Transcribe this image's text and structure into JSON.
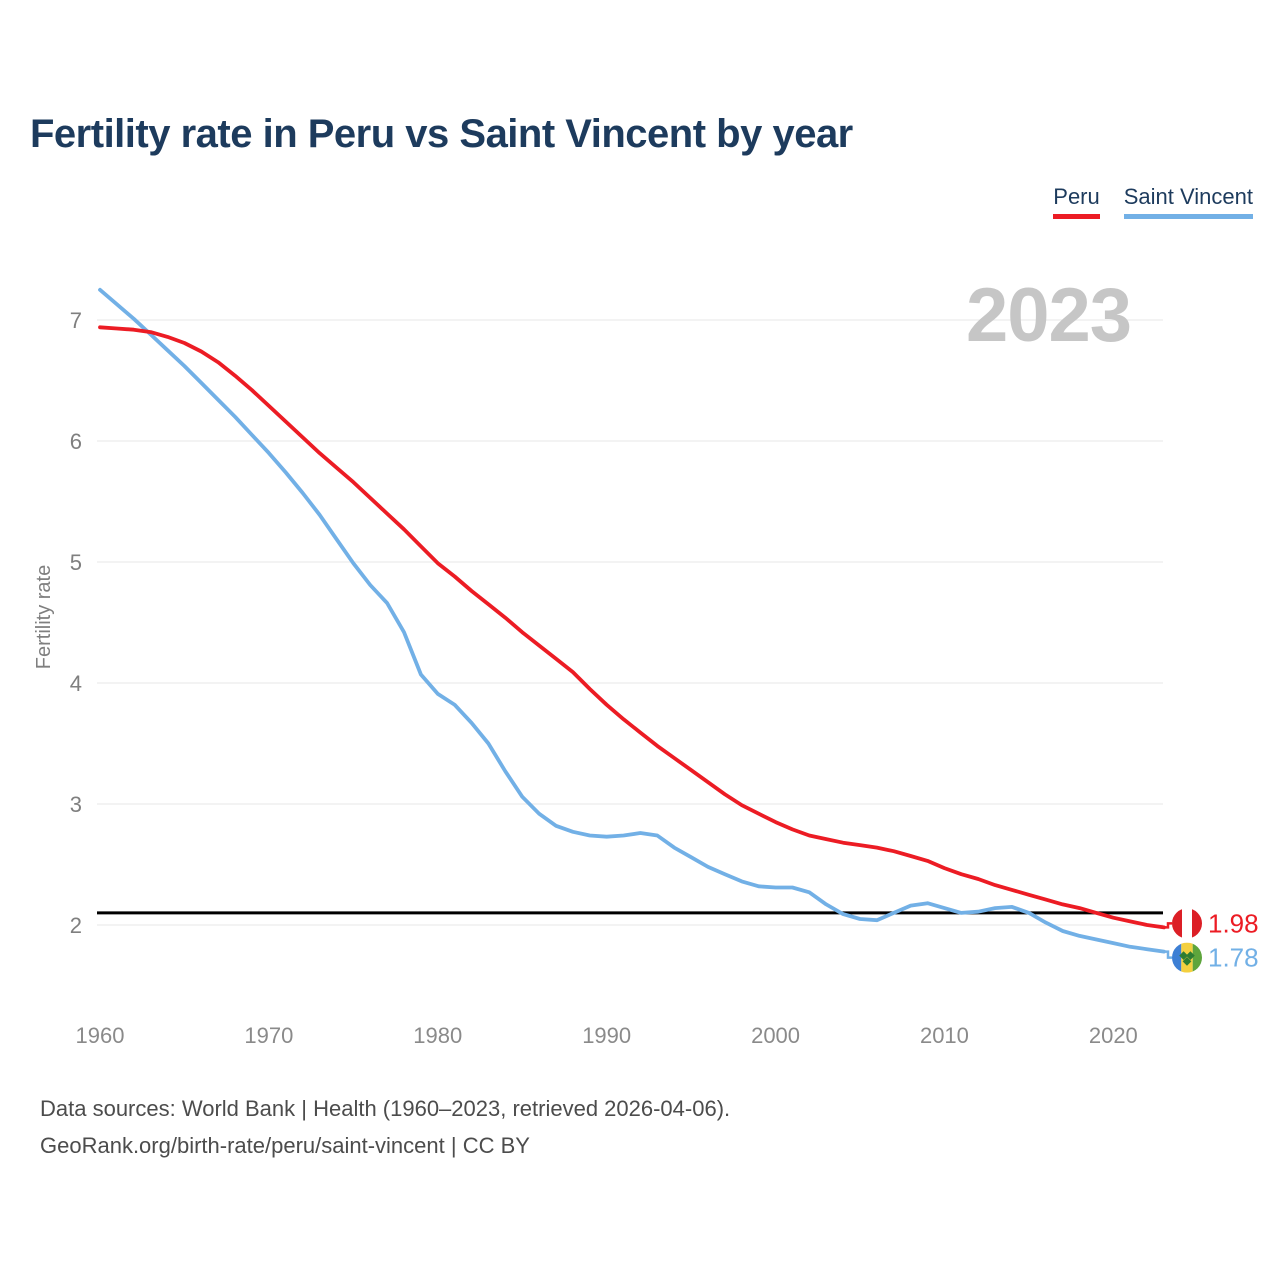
{
  "header": {
    "title": "Fertility rate in Peru vs Saint Vincent by year"
  },
  "legend": {
    "items": [
      {
        "label": "Peru",
        "color": "#ec1c24"
      },
      {
        "label": "Saint Vincent",
        "color": "#72b0e6"
      }
    ]
  },
  "watermark": "2023",
  "chart_data": {
    "type": "line",
    "title": "Fertility rate in Peru vs Saint Vincent by year",
    "xlabel": "",
    "ylabel": "Fertility rate",
    "x_ticks": [
      1960,
      1970,
      1980,
      1990,
      2000,
      2010,
      2020
    ],
    "y_ticks": [
      2,
      3,
      4,
      5,
      6,
      7
    ],
    "xlim": [
      1960,
      2023
    ],
    "ylim": [
      1.5,
      7.4
    ],
    "grid": "horizontal",
    "legend_position": "top-right",
    "reference_line": {
      "value": 2.1,
      "color": "#000000"
    },
    "x": [
      1960,
      1961,
      1962,
      1963,
      1964,
      1965,
      1966,
      1967,
      1968,
      1969,
      1970,
      1971,
      1972,
      1973,
      1974,
      1975,
      1976,
      1977,
      1978,
      1979,
      1980,
      1981,
      1982,
      1983,
      1984,
      1985,
      1986,
      1987,
      1988,
      1989,
      1990,
      1991,
      1992,
      1993,
      1994,
      1995,
      1996,
      1997,
      1998,
      1999,
      2000,
      2001,
      2002,
      2003,
      2004,
      2005,
      2006,
      2007,
      2008,
      2009,
      2010,
      2011,
      2012,
      2013,
      2014,
      2015,
      2016,
      2017,
      2018,
      2019,
      2020,
      2021,
      2022,
      2023
    ],
    "series": [
      {
        "name": "Peru",
        "color": "#ec1c24",
        "end_label": "1.98",
        "flag": "peru-flag",
        "values": [
          6.94,
          6.93,
          6.92,
          6.9,
          6.86,
          6.81,
          6.74,
          6.65,
          6.54,
          6.42,
          6.29,
          6.16,
          6.03,
          5.9,
          5.78,
          5.66,
          5.53,
          5.4,
          5.27,
          5.13,
          4.99,
          4.88,
          4.76,
          4.65,
          4.54,
          4.42,
          4.31,
          4.2,
          4.09,
          3.95,
          3.82,
          3.7,
          3.59,
          3.48,
          3.38,
          3.28,
          3.18,
          3.08,
          2.99,
          2.92,
          2.85,
          2.79,
          2.74,
          2.71,
          2.68,
          2.66,
          2.64,
          2.61,
          2.57,
          2.53,
          2.47,
          2.42,
          2.38,
          2.33,
          2.29,
          2.25,
          2.21,
          2.17,
          2.14,
          2.1,
          2.06,
          2.03,
          2.0,
          1.98
        ]
      },
      {
        "name": "Saint Vincent",
        "color": "#72b0e6",
        "end_label": "1.78",
        "flag": "saint-vincent-flag",
        "values": [
          7.25,
          7.13,
          7.01,
          6.88,
          6.75,
          6.62,
          6.48,
          6.34,
          6.2,
          6.05,
          5.9,
          5.74,
          5.57,
          5.39,
          5.19,
          4.99,
          4.81,
          4.66,
          4.42,
          4.07,
          3.91,
          3.82,
          3.67,
          3.5,
          3.27,
          3.06,
          2.92,
          2.82,
          2.77,
          2.74,
          2.73,
          2.74,
          2.76,
          2.74,
          2.64,
          2.56,
          2.48,
          2.42,
          2.36,
          2.32,
          2.31,
          2.31,
          2.27,
          2.17,
          2.09,
          2.05,
          2.04,
          2.1,
          2.16,
          2.18,
          2.14,
          2.1,
          2.11,
          2.14,
          2.15,
          2.1,
          2.02,
          1.95,
          1.91,
          1.88,
          1.85,
          1.82,
          1.8,
          1.78
        ]
      }
    ]
  },
  "footer": {
    "line1": "Data sources: World Bank | Health (1960–2023, retrieved 2026-04-06).",
    "line2": "GeoRank.org/birth-rate/peru/saint-vincent | CC BY"
  }
}
